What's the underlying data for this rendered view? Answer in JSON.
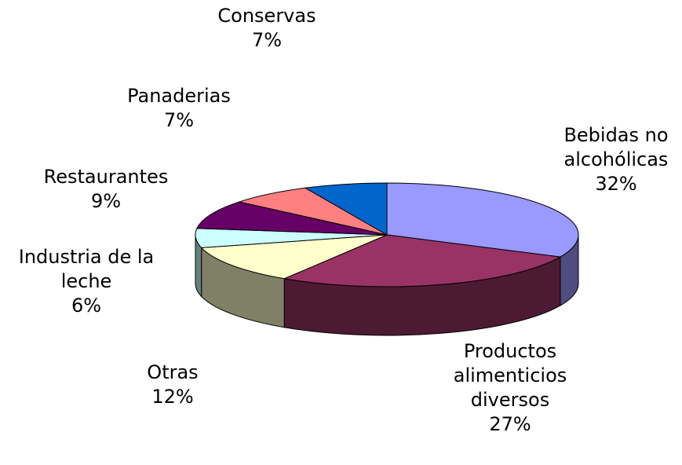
{
  "chart_data": {
    "type": "pie3d",
    "categories": [
      "Bebidas no alcohólicas",
      "Productos alimenticios diversos",
      "Otras",
      "Industria de la leche",
      "Restaurantes",
      "Panaderias",
      "Conservas"
    ],
    "values": [
      32,
      27,
      12,
      6,
      9,
      7,
      7
    ],
    "value_labels": [
      "32%",
      "27%",
      "12%",
      "6%",
      "9%",
      "7%",
      "7%"
    ],
    "colors": [
      "#9999ff",
      "#993366",
      "#ffffcc",
      "#ccffff",
      "#660066",
      "#ff8080",
      "#0066cc"
    ]
  }
}
